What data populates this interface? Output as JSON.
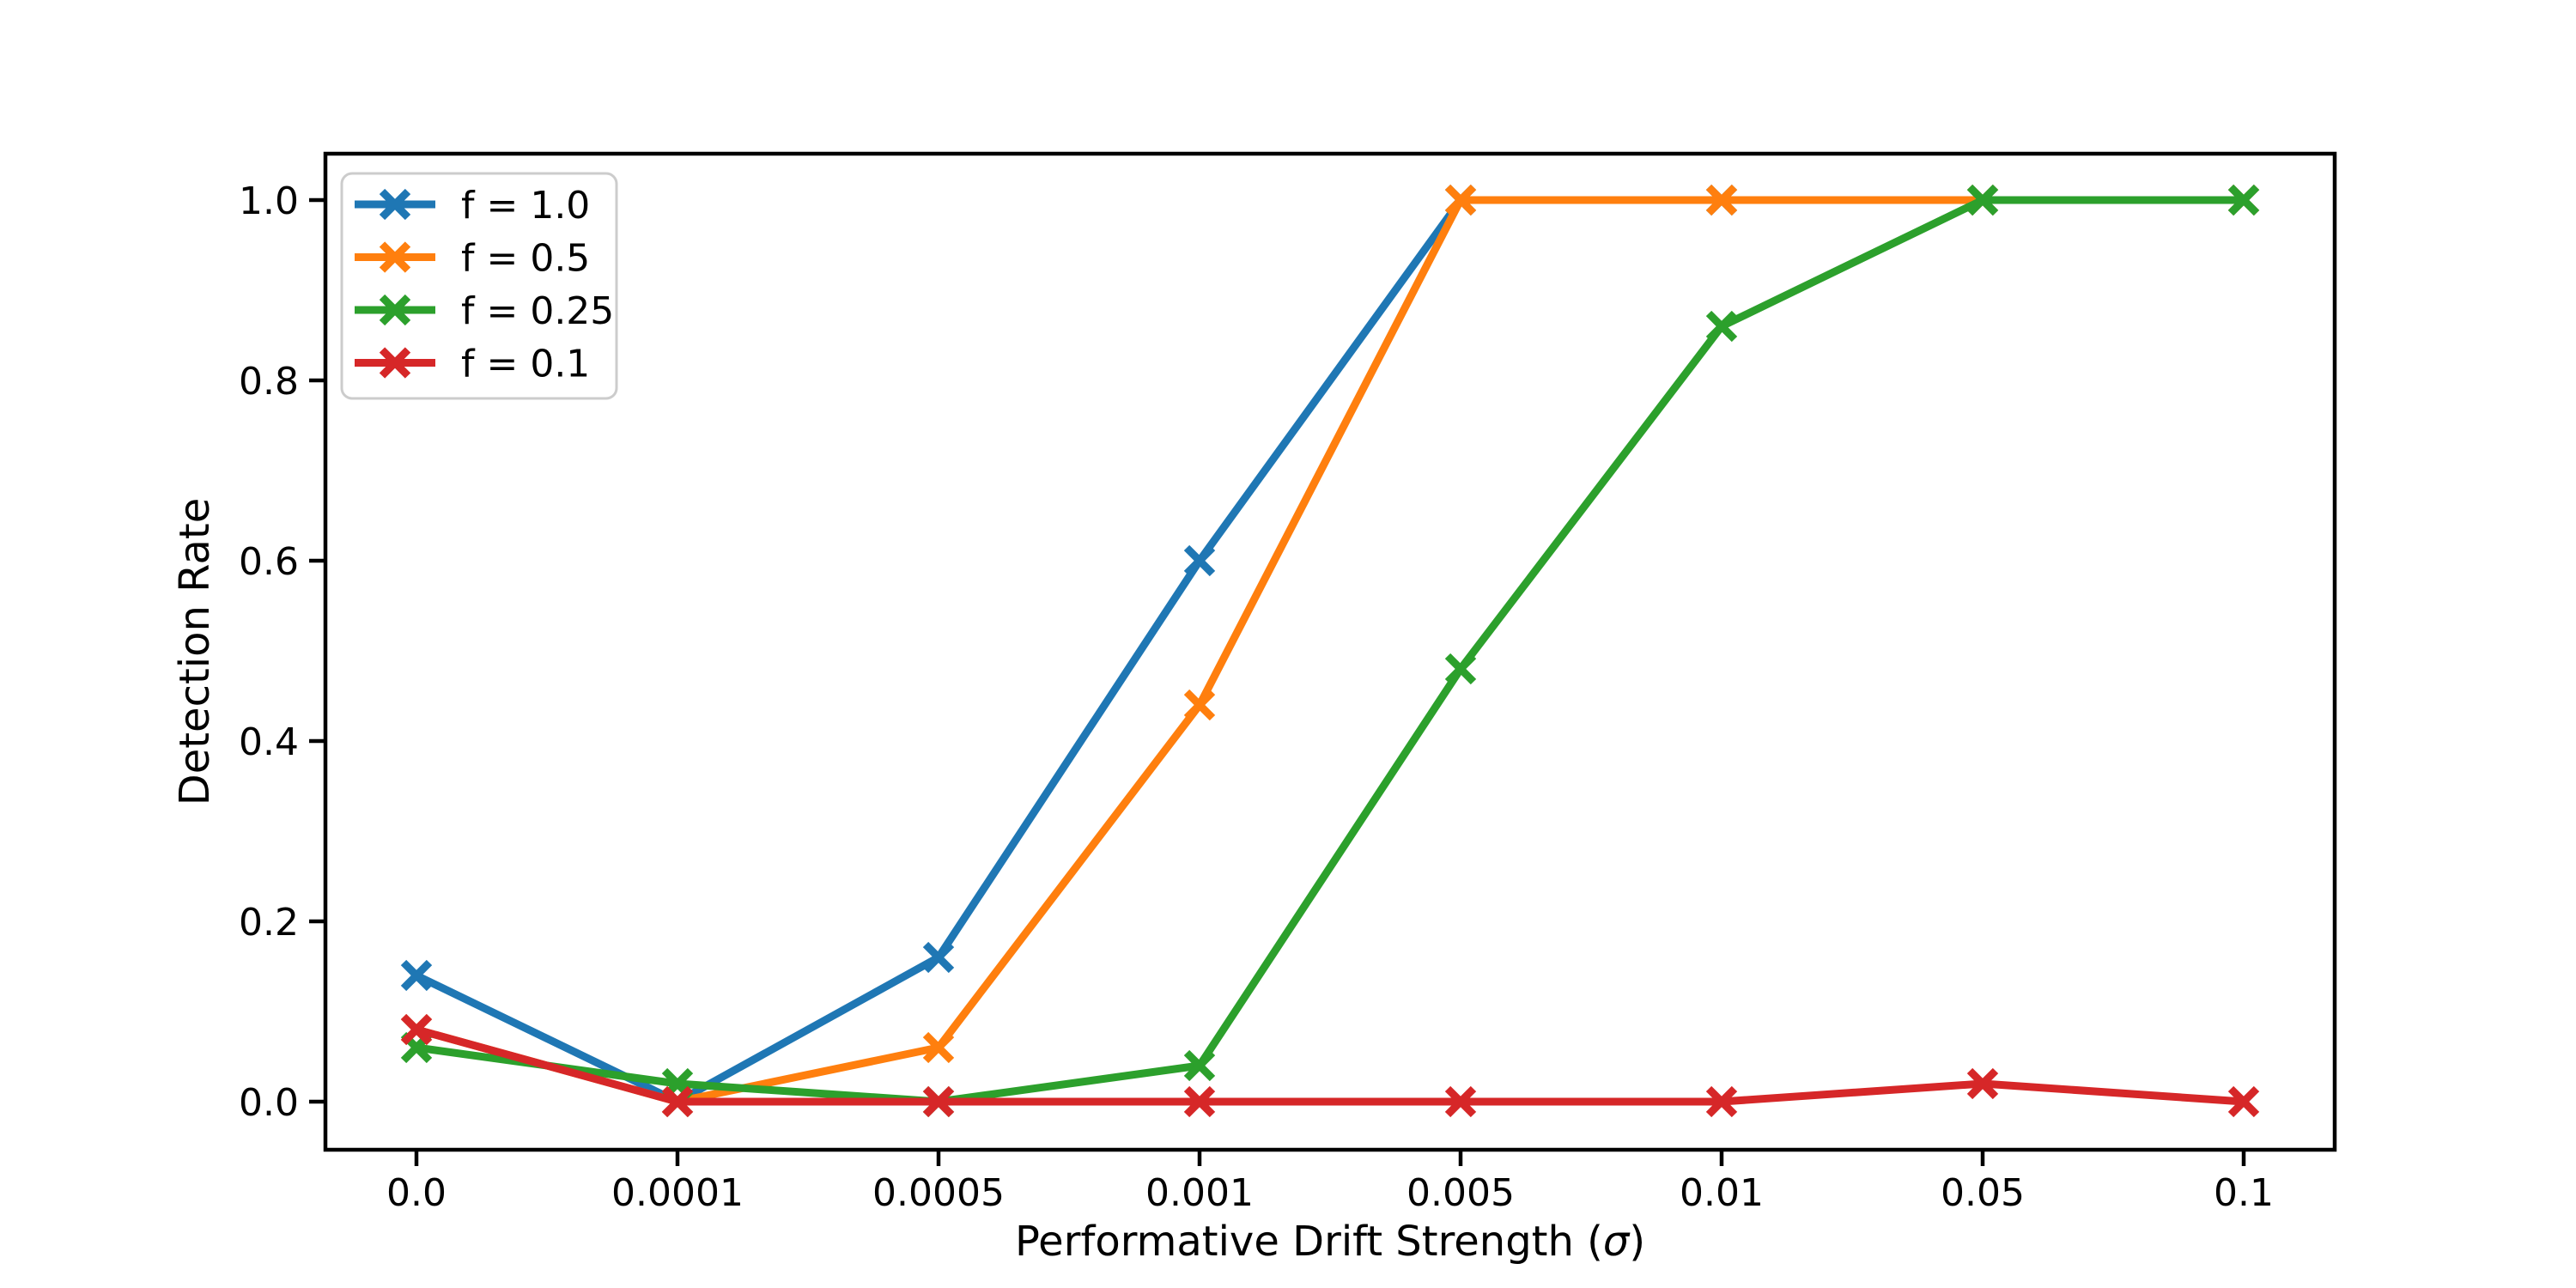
{
  "figure": {
    "background": "#ffffff"
  },
  "chart_data": {
    "type": "line",
    "title": "",
    "xlabel": "Performative Drift Strength (σ)",
    "xlabel_italic_token": "σ",
    "ylabel": "Detection Rate",
    "categories": [
      "0.0",
      "0.0001",
      "0.0005",
      "0.001",
      "0.005",
      "0.01",
      "0.05",
      "0.1"
    ],
    "yticks": [
      "0.0",
      "0.2",
      "0.4",
      "0.6",
      "0.8",
      "1.0"
    ],
    "ylim": [
      -0.05,
      1.05
    ],
    "grid": false,
    "marker": "x",
    "legend_position": "upper left",
    "legend_border_color": "#cccccc",
    "axis_color": "#000000",
    "series": [
      {
        "name": "f = 1.0",
        "color": "#1f77b4",
        "values": [
          0.14,
          0.0,
          0.16,
          0.6,
          1.0,
          1.0,
          1.0,
          1.0
        ]
      },
      {
        "name": "f = 0.5",
        "color": "#ff7f0e",
        "values": [
          0.08,
          0.0,
          0.06,
          0.44,
          1.0,
          1.0,
          1.0,
          1.0
        ]
      },
      {
        "name": "f = 0.25",
        "color": "#2ca02c",
        "values": [
          0.06,
          0.02,
          0.0,
          0.04,
          0.48,
          0.86,
          1.0,
          1.0
        ]
      },
      {
        "name": "f = 0.1",
        "color": "#d62728",
        "values": [
          0.08,
          0.0,
          0.0,
          0.0,
          0.0,
          0.0,
          0.02,
          0.0
        ]
      }
    ]
  }
}
